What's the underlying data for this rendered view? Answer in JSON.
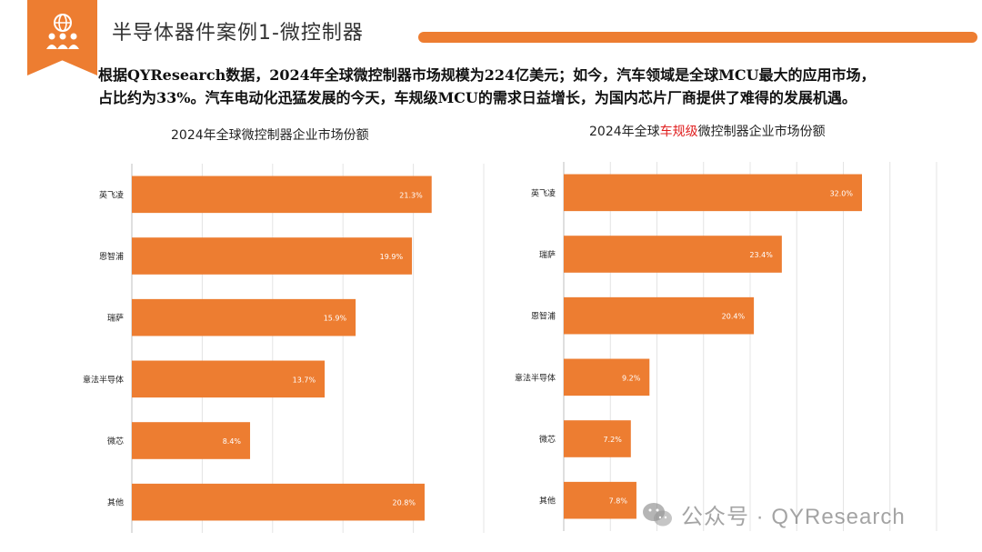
{
  "header": {
    "title": "半导体器件案例1-微控制器",
    "accent_color": "#ed7d31"
  },
  "intro": {
    "line1": "根据QYResearch数据，2024年全球微控制器市场规模为224亿美元；如今，汽车领域是全球MCU最大的应用市场，",
    "line2": "占比约为33%。汽车电动化迅猛发展的今天，车规级MCU的需求日益增长，为国内芯片厂商提供了难得的发展机遇。"
  },
  "charts": {
    "left_title": "2024年全球微控制器企业市场份额",
    "right_title_pre": "2024年全球",
    "right_title_highlight": "车规级",
    "right_title_post": "微控制器企业市场份额"
  },
  "watermark": {
    "text": "公众号 · QYResearch",
    "icon": "wechat-icon"
  },
  "chart_data": [
    {
      "type": "bar",
      "orientation": "horizontal",
      "title": "2024年全球微控制器企业市场份额",
      "categories": [
        "英飞凌",
        "恩智浦",
        "瑞萨",
        "意法半导体",
        "微芯",
        "其他"
      ],
      "values": [
        21.3,
        19.9,
        15.9,
        13.7,
        8.4,
        20.8
      ],
      "value_labels": [
        "21.3%",
        "19.9%",
        "15.9%",
        "13.7%",
        "8.4%",
        "20.8%"
      ],
      "xlim": [
        0,
        25
      ],
      "grid": true,
      "bar_color": "#ed7d31"
    },
    {
      "type": "bar",
      "orientation": "horizontal",
      "title": "2024年全球车规级微控制器企业市场份额",
      "categories": [
        "英飞凌",
        "瑞萨",
        "恩智浦",
        "意法半导体",
        "微芯",
        "其他"
      ],
      "values": [
        32.0,
        23.4,
        20.4,
        9.2,
        7.2,
        7.8
      ],
      "value_labels": [
        "32.0%",
        "23.4%",
        "20.4%",
        "9.2%",
        "7.2%",
        "7.8%"
      ],
      "xlim": [
        0,
        40
      ],
      "grid": true,
      "bar_color": "#ed7d31"
    }
  ]
}
